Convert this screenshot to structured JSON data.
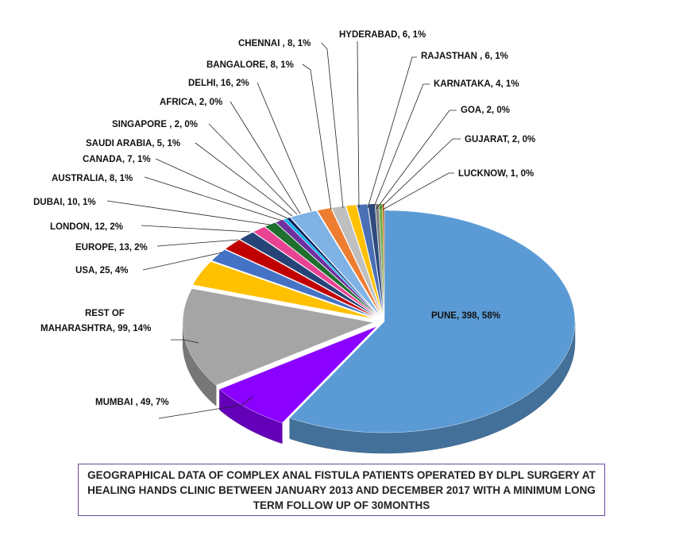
{
  "chart_data": {
    "type": "pie",
    "style": "3d-exploded",
    "title": "GEOGRAPHICAL DATA OF COMPLEX ANAL FISTULA PATIENTS OPERATED BY DLPL SURGERY AT HEALING HANDS CLINIC BETWEEN JANUARY 2013 AND DECEMBER 2017 WITH A MINIMUM LONG TERM FOLLOW UP OF 30MONTHS",
    "slices": [
      {
        "name": "PUNE",
        "value": 398,
        "label": "PUNE, 398, 58%",
        "color": "#5b9bd5"
      },
      {
        "name": "MUMBAI",
        "value": 49,
        "label": "MUMBAI , 49, 7%",
        "color": "#8b00ff"
      },
      {
        "name": "REST OF MAHARASHTRA",
        "value": 99,
        "label": "REST OF MAHARASHTRA, 99, 14%",
        "color": "#a5a5a5"
      },
      {
        "name": "USA",
        "value": 25,
        "label": "USA, 25, 4%",
        "color": "#ffc000"
      },
      {
        "name": "EUROPE",
        "value": 13,
        "label": "EUROPE, 13, 2%",
        "color": "#4472c4"
      },
      {
        "name": "LONDON",
        "value": 12,
        "label": "LONDON, 12, 2%",
        "color": "#c00000"
      },
      {
        "name": "DUBAI",
        "value": 10,
        "label": "DUBAI, 10, 1%",
        "color": "#264478"
      },
      {
        "name": "AUSTRALIA",
        "value": 8,
        "label": "AUSTRALIA, 8, 1%",
        "color": "#e84393"
      },
      {
        "name": "CANADA",
        "value": 7,
        "label": "CANADA, 7, 1%",
        "color": "#1f6f2e"
      },
      {
        "name": "SAUDI ARABIA",
        "value": 5,
        "label": "SAUDI ARABIA, 5, 1%",
        "color": "#7030a0"
      },
      {
        "name": "SINGAPORE",
        "value": 2,
        "label": "SINGAPORE , 2, 0%",
        "color": "#00b0f0"
      },
      {
        "name": "AFRICA",
        "value": 2,
        "label": "AFRICA, 2, 0%",
        "color": "#002060"
      },
      {
        "name": "DELHI",
        "value": 16,
        "label": "DELHI, 16, 2%",
        "color": "#7fb2e5"
      },
      {
        "name": "BANGALORE",
        "value": 8,
        "label": "BANGALORE, 8, 1%",
        "color": "#ed7d31"
      },
      {
        "name": "CHENNAI",
        "value": 8,
        "label": "CHENNAI , 8, 1%",
        "color": "#bfbfbf"
      },
      {
        "name": "HYDERABAD",
        "value": 6,
        "label": "HYDERABAD, 6, 1%",
        "color": "#ffc000"
      },
      {
        "name": "RAJASTHAN",
        "value": 6,
        "label": "RAJASTHAN , 6, 1%",
        "color": "#4a6fb5"
      },
      {
        "name": "KARNATAKA",
        "value": 4,
        "label": "KARNATAKA, 4, 1%",
        "color": "#2e4a7d"
      },
      {
        "name": "GOA",
        "value": 2,
        "label": "GOA, 2, 0%",
        "color": "#7f7f7f"
      },
      {
        "name": "GUJARAT",
        "value": 2,
        "label": "GUJARAT, 2, 0%",
        "color": "#70ad47"
      },
      {
        "name": "LUCKNOW",
        "value": 1,
        "label": "LUCKNOW, 1, 0%",
        "color": "#c55a11"
      }
    ]
  }
}
